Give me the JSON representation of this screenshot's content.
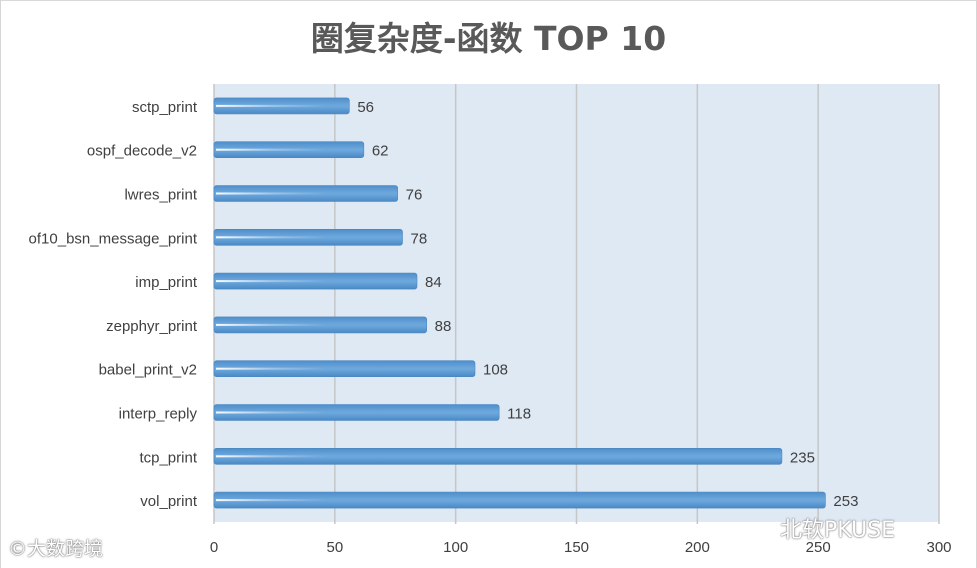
{
  "chart_data": {
    "type": "bar",
    "orientation": "horizontal",
    "title": "圈复杂度-函数 TOP 10",
    "categories": [
      "sctp_print",
      "ospf_decode_v2",
      "lwres_print",
      "of10_bsn_message_print",
      "imp_print",
      "zepphyr_print",
      "babel_print_v2",
      "interp_reply",
      "tcp_print",
      "vol_print"
    ],
    "values": [
      56,
      62,
      76,
      78,
      84,
      88,
      108,
      118,
      235,
      253
    ],
    "xlim": [
      0,
      300
    ],
    "xticks": [
      "0",
      "50",
      "100",
      "150",
      "200",
      "250",
      "300"
    ],
    "xlabel": "",
    "ylabel": "",
    "grid": true,
    "legend": "none",
    "colors": {
      "bar": "#5b9bd5",
      "plot_bg": "#dfe9f4",
      "grid": "#c6c6c6",
      "title": "#595959",
      "label": "#404040"
    }
  },
  "watermarks": {
    "left": "©大数跨境",
    "right": "北软PKUSE"
  }
}
